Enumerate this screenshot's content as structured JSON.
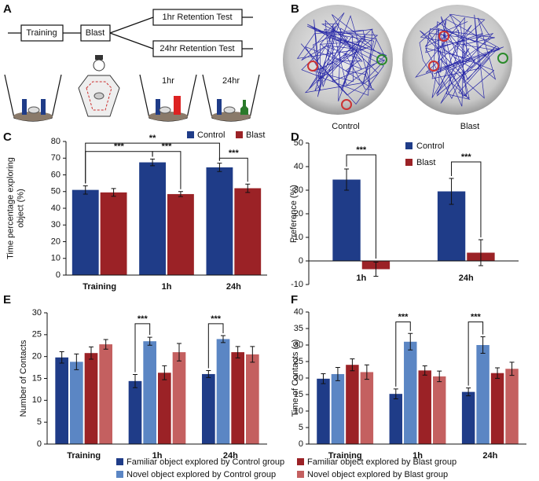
{
  "panel_labels": [
    "A",
    "B",
    "C",
    "D",
    "E",
    "F"
  ],
  "protocol": {
    "steps": [
      "Training",
      "Blast"
    ],
    "tests": [
      "1hr Retention Test",
      "24hr Retention Test"
    ],
    "arena_labels": [
      "1hr",
      "24hr"
    ]
  },
  "maze": {
    "labels": [
      "Control",
      "Blast"
    ]
  },
  "chart_data": [
    {
      "type": "bar",
      "y_label": [
        "Time percentage exploring",
        "object (%)"
      ],
      "categories": [
        "Training",
        "1h",
        "24h"
      ],
      "series": [
        {
          "name": "Control",
          "color": "#1f3c88",
          "values": [
            51,
            67.5,
            64.5
          ],
          "errors": [
            2.5,
            2,
            2.5
          ]
        },
        {
          "name": "Blast",
          "color": "#9b2226",
          "values": [
            49.5,
            48.5,
            52
          ],
          "errors": [
            2.3,
            1.5,
            2.5
          ]
        }
      ],
      "ylim": [
        0,
        80
      ],
      "yticks": [
        0,
        10,
        20,
        30,
        40,
        50,
        60,
        70,
        80
      ],
      "annotations": [
        "***",
        "**",
        "***",
        "***"
      ]
    },
    {
      "type": "bar",
      "y_label": [
        "Preference (%)"
      ],
      "categories": [
        "1h",
        "24h"
      ],
      "series": [
        {
          "name": "Control",
          "color": "#1f3c88",
          "values": [
            34.5,
            29.5
          ],
          "errors": [
            4.5,
            5.5
          ]
        },
        {
          "name": "Blast",
          "color": "#9b2226",
          "values": [
            -3.5,
            3.5
          ],
          "errors": [
            3,
            5.5
          ]
        }
      ],
      "ylim": [
        -10,
        50
      ],
      "yticks": [
        -10,
        0,
        10,
        20,
        30,
        40,
        50
      ],
      "annotations": [
        "***",
        "***"
      ]
    },
    {
      "type": "bar",
      "y_label": [
        "Number of Contacts"
      ],
      "categories": [
        "Training",
        "1h",
        "24h"
      ],
      "series": [
        {
          "name": "Familiar object explored by Control group",
          "color": "#1f3c88",
          "values": [
            19.8,
            14.4,
            16.0
          ],
          "errors": [
            1.3,
            1.5,
            0.8
          ]
        },
        {
          "name": "Novel object explored by Control group",
          "color": "#5b86c4",
          "values": [
            18.8,
            23.5,
            24.0
          ],
          "errors": [
            1.8,
            0.9,
            0.8
          ]
        },
        {
          "name": "Familiar object explored by Blast group",
          "color": "#9b2226",
          "values": [
            20.8,
            16.3,
            21.0
          ],
          "errors": [
            1.4,
            1.6,
            1.3
          ]
        },
        {
          "name": "Novel object explored by Blast group",
          "color": "#c46060",
          "values": [
            22.8,
            21.0,
            20.5
          ],
          "errors": [
            1.1,
            2.0,
            1.8
          ]
        }
      ],
      "ylim": [
        0,
        30
      ],
      "yticks": [
        0,
        5,
        10,
        15,
        20,
        25,
        30
      ],
      "annotations": [
        "***",
        "***"
      ]
    },
    {
      "type": "bar",
      "y_label": [
        "Time of Contacts (s)"
      ],
      "categories": [
        "Training",
        "1h",
        "24h"
      ],
      "series": [
        {
          "color": "#1f3c88",
          "values": [
            19.8,
            15.2,
            15.8
          ],
          "errors": [
            1.5,
            1.5,
            1.2
          ]
        },
        {
          "color": "#5b86c4",
          "values": [
            21.2,
            31.0,
            30.0
          ],
          "errors": [
            2.0,
            2.5,
            2.5
          ]
        },
        {
          "color": "#9b2226",
          "values": [
            24.0,
            22.3,
            21.5
          ],
          "errors": [
            1.8,
            1.4,
            1.6
          ]
        },
        {
          "color": "#c46060",
          "values": [
            21.8,
            20.5,
            22.8
          ],
          "errors": [
            2.2,
            1.6,
            2.0
          ]
        }
      ],
      "ylim": [
        0,
        40
      ],
      "yticks": [
        0,
        5,
        10,
        15,
        20,
        25,
        30,
        35,
        40
      ],
      "annotations": [
        "***",
        "***"
      ]
    }
  ]
}
